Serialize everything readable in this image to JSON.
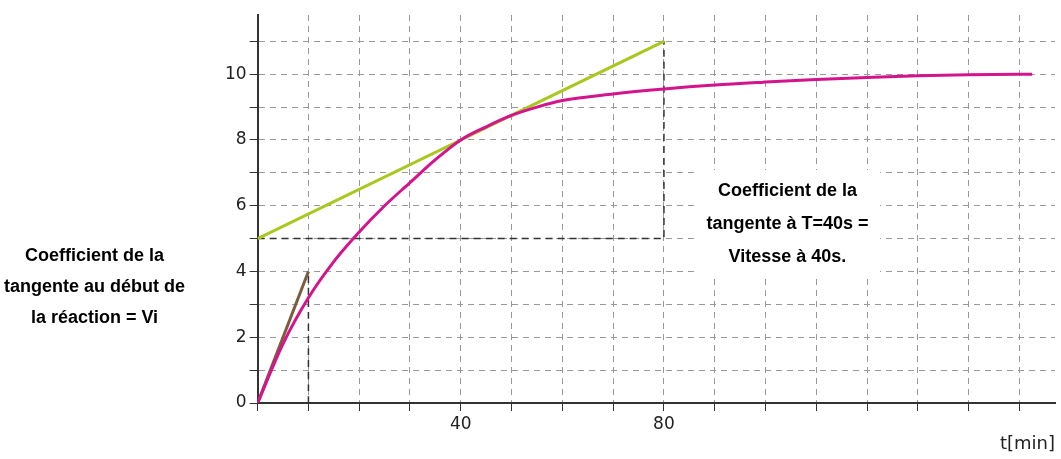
{
  "chart_data": {
    "type": "line",
    "xlabel": "t[min]",
    "xlim": [
      0,
      157
    ],
    "ylim": [
      0,
      11.8
    ],
    "xticks": [
      {
        "value": 0,
        "label": null
      },
      {
        "value": 10,
        "label": null
      },
      {
        "value": 20,
        "label": null
      },
      {
        "value": 30,
        "label": null
      },
      40,
      {
        "value": 50,
        "label": null
      },
      {
        "value": 60,
        "label": null
      },
      {
        "value": 70,
        "label": null
      },
      80,
      {
        "value": 90,
        "label": null
      },
      {
        "value": 100,
        "label": null
      },
      {
        "value": 110,
        "label": null
      },
      {
        "value": 120,
        "label": null
      },
      {
        "value": 130,
        "label": null
      },
      {
        "value": 140,
        "label": null
      },
      {
        "value": 150,
        "label": null
      }
    ],
    "yticks": [
      0,
      {
        "value": 1,
        "label": null
      },
      2,
      {
        "value": 3,
        "label": null
      },
      4,
      {
        "value": 5,
        "label": null
      },
      6,
      {
        "value": 7,
        "label": null
      },
      8,
      {
        "value": 9,
        "label": null
      },
      10,
      {
        "value": 11,
        "label": null
      }
    ],
    "grid": true,
    "marker": "none",
    "legend": false,
    "series": [
      {
        "color": "#d4148c",
        "x": [
          0,
          5,
          10,
          15,
          20,
          25,
          30,
          35,
          40,
          45,
          50,
          55,
          60,
          70,
          80,
          90,
          100,
          110,
          120,
          130,
          140,
          152.5
        ],
        "values": [
          0,
          1.8,
          3.2,
          4.3,
          5.2,
          6.0,
          6.7,
          7.4,
          8.0,
          8.4,
          8.75,
          9.0,
          9.2,
          9.4,
          9.55,
          9.67,
          9.76,
          9.84,
          9.9,
          9.95,
          9.98,
          10.0
        ]
      },
      {
        "color": "#a8c81e",
        "x": [
          0,
          80
        ],
        "values": [
          5,
          11
        ]
      },
      {
        "color": "#7a5c3e",
        "x": [
          0,
          10
        ],
        "values": [
          0,
          4
        ]
      },
      {
        "color": "#333333",
        "line_style": "dashed",
        "x": [
          0,
          80,
          80
        ],
        "values": [
          5,
          5,
          11
        ]
      },
      {
        "color": "#333333",
        "line_style": "dashed",
        "x": [
          10,
          10
        ],
        "values": [
          0,
          4
        ]
      }
    ],
    "annotations": [
      "Coefficient de la tangente au début de la réaction = Vi",
      "Coefficient de la tangente à T=40s = Vitesse à 40s."
    ]
  }
}
